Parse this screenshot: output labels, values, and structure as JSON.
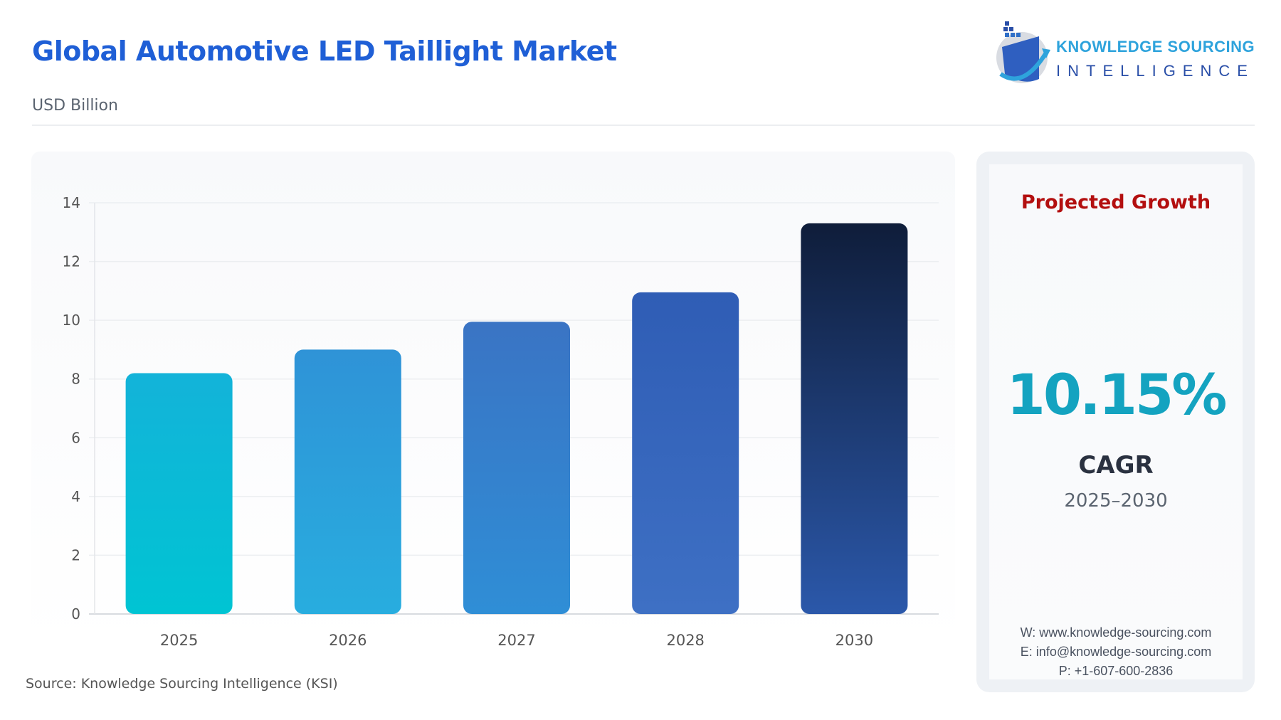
{
  "header": {
    "title": "Global Automotive LED Taillight Market",
    "unit": "USD Billion"
  },
  "logo": {
    "line1": "KNOWLEDGE SOURCING",
    "line2": "INTELLIGENCE"
  },
  "chart_data": {
    "type": "bar",
    "categories": [
      "2025",
      "2026",
      "2027",
      "2028",
      "2030"
    ],
    "values": [
      8.2,
      9.0,
      9.95,
      10.95,
      13.3
    ],
    "ylabel": "USD Billion",
    "ylim": [
      0,
      14
    ],
    "yticks": [
      0,
      2,
      4,
      6,
      8,
      10,
      12,
      14
    ],
    "grid": true,
    "colors": [
      [
        "#13b3d9",
        "#00c4d3"
      ],
      [
        "#2f93d7",
        "#28addf"
      ],
      [
        "#3a74c4",
        "#2f8ed6"
      ],
      [
        "#2f5db5",
        "#3e70c4"
      ],
      [
        "#0f1d3a",
        "#2b58aa"
      ]
    ]
  },
  "source": "Source: Knowledge Sourcing Intelligence (KSI)",
  "panel": {
    "heading": "Projected Growth",
    "cagr_value": "10.15%",
    "cagr_label": "CAGR",
    "period": "2025–2030",
    "contact": {
      "web": "W: www.knowledge-sourcing.com",
      "email": "E: info@knowledge-sourcing.com",
      "phone": "P: +1-607-600-2836"
    }
  }
}
